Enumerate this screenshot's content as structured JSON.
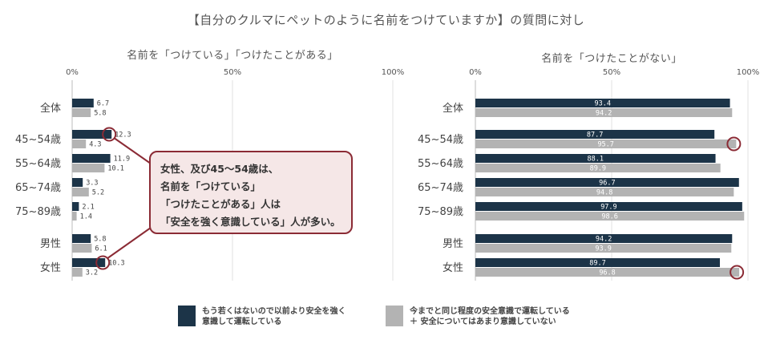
{
  "header": {
    "title": "【自分のクルマにペットのように名前をつけていますか】の質問に対し"
  },
  "callout": {
    "lines": [
      "女性、及び45～54歳は、",
      "名前を「つけている」",
      "「つけたことがある」人は",
      "「安全を強く意識している」人が多い。"
    ]
  },
  "legend": {
    "items": [
      {
        "lines": [
          "もう若くはないので以前より安全を強く",
          "意識して運転している"
        ],
        "color": "#1c3448"
      },
      {
        "lines": [
          "今までと同じ程度の安全意識で運転している",
          "＋ 安全についてはあまり意識していない"
        ],
        "color": "#b3b3b3"
      }
    ]
  },
  "colors": {
    "dark": "#1c3448",
    "gray": "#b3b3b3",
    "highlight": "#8b2b35"
  },
  "chart_data": [
    {
      "type": "bar",
      "orientation": "horizontal",
      "title": "名前を「つけている」「つけたことがある」",
      "categories": [
        "全体",
        "45~54歳",
        "55~64歳",
        "65~74歳",
        "75~89歳",
        "男性",
        "女性"
      ],
      "series": [
        {
          "values": [
            6.7,
            12.3,
            11.9,
            3.3,
            2.1,
            5.8,
            10.3
          ]
        },
        {
          "values": [
            5.8,
            4.3,
            10.1,
            5.2,
            1.4,
            6.1,
            3.2
          ]
        }
      ],
      "xlim": [
        0,
        100
      ],
      "xticks": [
        "0%",
        "50%",
        "100%"
      ],
      "highlighted": [
        "45~54歳",
        "女性"
      ]
    },
    {
      "type": "bar",
      "orientation": "horizontal",
      "title": "名前を「つけたことがない」",
      "categories": [
        "全体",
        "45~54歳",
        "55~64歳",
        "65~74歳",
        "75~89歳",
        "男性",
        "女性"
      ],
      "series": [
        {
          "values": [
            93.4,
            87.7,
            88.1,
            96.7,
            97.9,
            94.2,
            89.7
          ]
        },
        {
          "values": [
            94.2,
            95.7,
            89.9,
            94.8,
            98.6,
            93.9,
            96.8
          ]
        }
      ],
      "xlim": [
        0,
        100
      ],
      "xticks": [
        "0%",
        "50%",
        "100%"
      ],
      "highlighted": [
        "45~54歳",
        "女性"
      ]
    }
  ]
}
